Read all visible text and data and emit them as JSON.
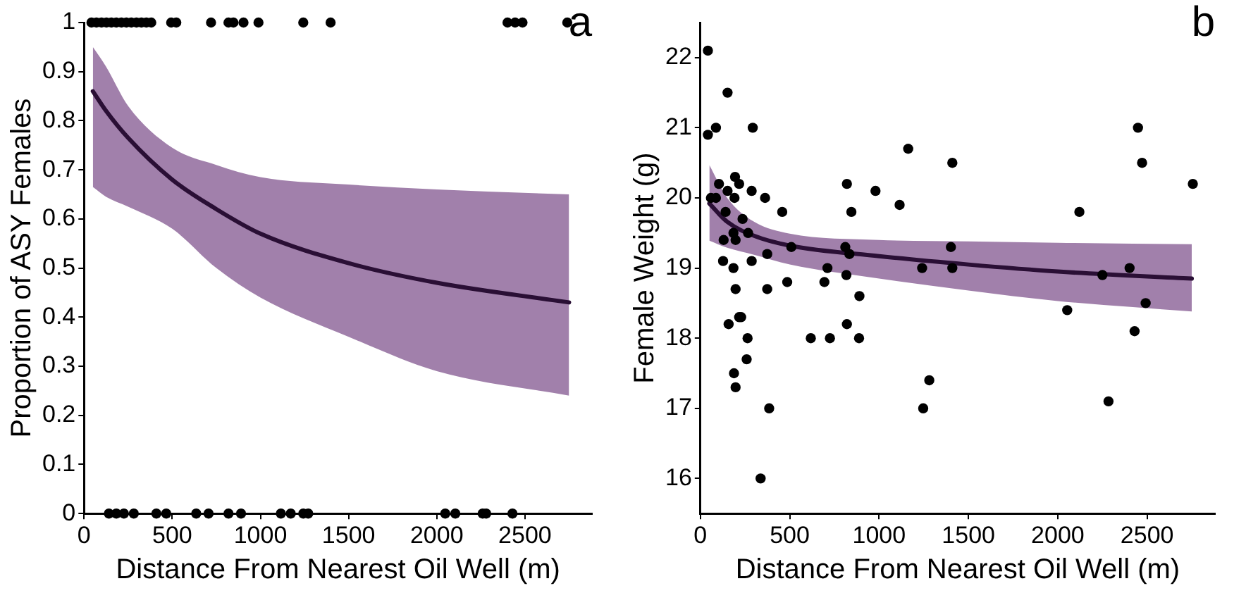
{
  "chart_data": [
    {
      "type": "scatter",
      "title": "a",
      "xlabel": "Distance From Nearest Oil Well (m)",
      "ylabel": "Proportion of ASY Females",
      "xlim": [
        0,
        2880
      ],
      "ylim": [
        0,
        1
      ],
      "xticks": [
        0,
        500,
        1000,
        1500,
        2000,
        2500
      ],
      "yticks": [
        0,
        0.1,
        0.2,
        0.3,
        0.4,
        0.5,
        0.6,
        0.7,
        0.8,
        0.9,
        1
      ],
      "grid": false,
      "legend": false,
      "series": [
        {
          "marker": "circle",
          "color": "#000000",
          "x": [
            42,
            70,
            99,
            127,
            155,
            183,
            212,
            240,
            268,
            297,
            325,
            353,
            381,
            494,
            523,
            720,
            819,
            847,
            904,
            989,
            1243,
            1398,
            2401,
            2444,
            2486,
            2740,
            141,
            183,
            226,
            282,
            410,
            466,
            636,
            706,
            819,
            890,
            1116,
            1172,
            1243,
            1271,
            2048,
            2105,
            2260,
            2280,
            2429
          ],
          "values": [
            1,
            1,
            1,
            1,
            1,
            1,
            1,
            1,
            1,
            1,
            1,
            1,
            1,
            1,
            1,
            1,
            1,
            1,
            1,
            1,
            1,
            1,
            1,
            1,
            1,
            1,
            0,
            0,
            0,
            0,
            0,
            0,
            0,
            0,
            0,
            0,
            0,
            0,
            0,
            0,
            0,
            0,
            0,
            0,
            0
          ]
        },
        {
          "type": "line",
          "marker": "none",
          "color": "#2a0f35",
          "line_style": "solid",
          "x": [
            50,
            125,
            250,
            500,
            750,
            1000,
            1500,
            2000,
            2750
          ],
          "values": [
            0.86,
            0.82,
            0.765,
            0.68,
            0.62,
            0.57,
            0.51,
            0.47,
            0.43
          ],
          "lower": [
            0.665,
            0.645,
            0.625,
            0.58,
            0.5,
            0.44,
            0.36,
            0.29,
            0.24
          ],
          "upper": [
            0.95,
            0.91,
            0.83,
            0.745,
            0.71,
            0.685,
            0.67,
            0.66,
            0.65
          ]
        }
      ]
    },
    {
      "type": "scatter",
      "title": "b",
      "xlabel": "Distance From Nearest Oil Well (m)",
      "ylabel": "Female Weight (g)",
      "xlim": [
        0,
        2880
      ],
      "ylim": [
        15.5,
        22.5
      ],
      "xticks": [
        0,
        500,
        1000,
        1500,
        2000,
        2500
      ],
      "yticks": [
        16,
        17,
        18,
        19,
        20,
        21,
        22
      ],
      "grid": false,
      "legend": false,
      "series": [
        {
          "marker": "circle",
          "color": "#000000",
          "x": [
            42,
            42,
            87,
            152,
            293,
            1163,
            1410,
            104,
            194,
            217,
            152,
            287,
            59,
            87,
            191,
            362,
            820,
            980,
            1115,
            141,
            458,
            845,
            236,
            185,
            267,
            130,
            197,
            509,
            811,
            1402,
            374,
            834,
            127,
            287,
            185,
            711,
            1241,
            1410,
            486,
            694,
            817,
            890,
            197,
            374,
            217,
            228,
            158,
            820,
            264,
            618,
            725,
            888,
            259,
            188,
            197,
            385,
            1247,
            1281,
            337,
            2053,
            2121,
            2250,
            2284,
            2402,
            2430,
            2449,
            2472,
            2492,
            2756
          ],
          "values": [
            22.1,
            20.9,
            21.0,
            21.5,
            21.0,
            20.7,
            20.5,
            20.2,
            20.3,
            20.2,
            20.1,
            20.1,
            20.0,
            20.0,
            20.0,
            20.0,
            20.2,
            20.1,
            19.9,
            19.8,
            19.8,
            19.8,
            19.7,
            19.5,
            19.5,
            19.4,
            19.4,
            19.3,
            19.3,
            19.3,
            19.2,
            19.2,
            19.1,
            19.1,
            19.0,
            19.0,
            19.0,
            19.0,
            18.8,
            18.8,
            18.9,
            18.6,
            18.7,
            18.7,
            18.3,
            18.3,
            18.2,
            18.2,
            18.0,
            18.0,
            18.0,
            18.0,
            17.7,
            17.5,
            17.3,
            17.0,
            17.0,
            17.4,
            16.0,
            18.4,
            19.8,
            18.9,
            17.1,
            19.0,
            18.1,
            21.0,
            20.5,
            18.5,
            20.2
          ]
        },
        {
          "type": "line",
          "marker": "none",
          "color": "#2a0f35",
          "line_style": "solid",
          "x": [
            50,
            150,
            300,
            500,
            1000,
            1500,
            2000,
            2750
          ],
          "values": [
            19.92,
            19.66,
            19.46,
            19.32,
            19.17,
            19.05,
            18.95,
            18.85
          ],
          "lower": [
            19.39,
            19.29,
            19.19,
            19.05,
            18.85,
            18.68,
            18.53,
            18.38
          ],
          "upper": [
            20.47,
            20.0,
            19.66,
            19.49,
            19.4,
            19.38,
            19.36,
            19.34
          ]
        }
      ]
    }
  ]
}
